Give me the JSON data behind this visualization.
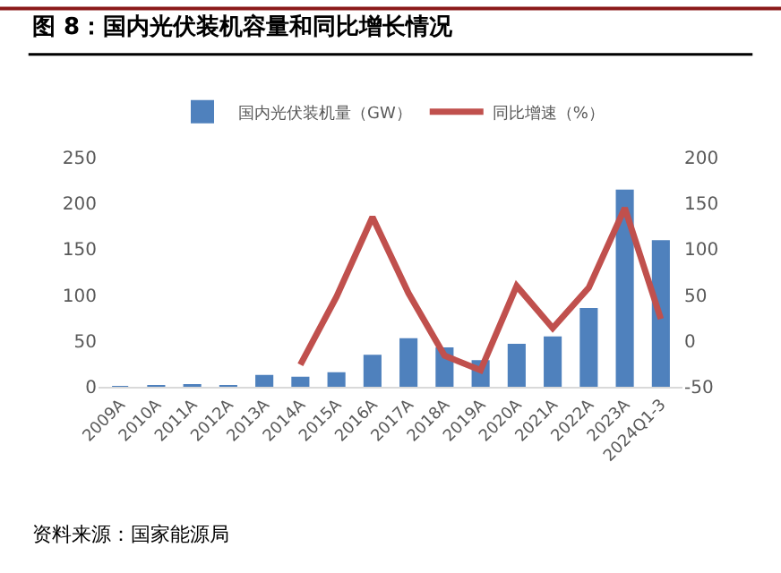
{
  "chart_data": {
    "type": "bar",
    "title": "图 8：国内光伏装机容量和同比增长情况",
    "categories": [
      "2009A",
      "2010A",
      "2011A",
      "2012A",
      "2013A",
      "2014A",
      "2015A",
      "2016A",
      "2017A",
      "2018A",
      "2019A",
      "2020A",
      "2021A",
      "2022A",
      "2023A",
      "2024Q1-3"
    ],
    "series": [
      {
        "name": "国内光伏装机量（GW）",
        "color": "#4f81bd",
        "values": [
          0,
          1,
          2,
          1,
          12,
          10,
          15,
          34,
          52,
          42,
          28,
          46,
          54,
          85,
          214,
          159
        ]
      },
      {
        "name": "同比增速（%）",
        "type": "line",
        "axis": "y2",
        "color": "#c0504d",
        "values": [
          null,
          null,
          null,
          null,
          null,
          -26,
          48,
          135,
          52,
          -16,
          -32,
          60,
          14,
          58,
          145,
          24
        ]
      }
    ],
    "ylim": [
      0,
      250
    ],
    "yticks": [
      0,
      50,
      100,
      150,
      200,
      250
    ],
    "y2lim": [
      -50,
      200
    ],
    "y2ticks": [
      -50,
      0,
      50,
      100,
      150,
      200
    ],
    "legend": "top",
    "annotations": [
      "资料来源：国家能源局"
    ]
  }
}
